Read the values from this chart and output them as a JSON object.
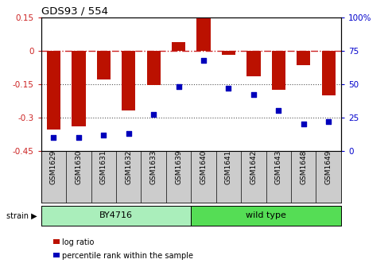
{
  "title": "GDS93 / 554",
  "samples": [
    "GSM1629",
    "GSM1630",
    "GSM1631",
    "GSM1632",
    "GSM1633",
    "GSM1639",
    "GSM1640",
    "GSM1641",
    "GSM1642",
    "GSM1643",
    "GSM1648",
    "GSM1649"
  ],
  "log_ratio": [
    -0.355,
    -0.34,
    -0.13,
    -0.27,
    -0.155,
    0.04,
    0.145,
    -0.02,
    -0.115,
    -0.175,
    -0.065,
    -0.2
  ],
  "percentile_rank": [
    10,
    10,
    12,
    13,
    27,
    48,
    68,
    47,
    42,
    30,
    20,
    22
  ],
  "by4716_count": 6,
  "wildtype_count": 6,
  "bar_color": "#BB1100",
  "scatter_color": "#0000BB",
  "ylim_left": [
    -0.45,
    0.15
  ],
  "ylim_right": [
    0,
    100
  ],
  "yticks_left": [
    0.15,
    0,
    -0.15,
    -0.3,
    -0.45
  ],
  "yticks_right": [
    100,
    75,
    50,
    25,
    0
  ],
  "ytick_labels_left": [
    "0.15",
    "0",
    "-0.15",
    "-0.3",
    "-0.45"
  ],
  "ytick_labels_right": [
    "100%",
    "75",
    "50",
    "25",
    "0"
  ],
  "hline_zero_color": "#CC2222",
  "hline_dotted_color": "#555555",
  "hline_dotted_values": [
    -0.15,
    -0.3
  ],
  "legend_log_ratio": "log ratio",
  "legend_percentile": "percentile rank within the sample",
  "strain_label": "strain",
  "by4716_label": "BY4716",
  "wildtype_label": "wild type",
  "by4716_color": "#AAEEBB",
  "wildtype_color": "#55DD55",
  "xtick_bg_color": "#CCCCCC",
  "background_color": "#ffffff"
}
